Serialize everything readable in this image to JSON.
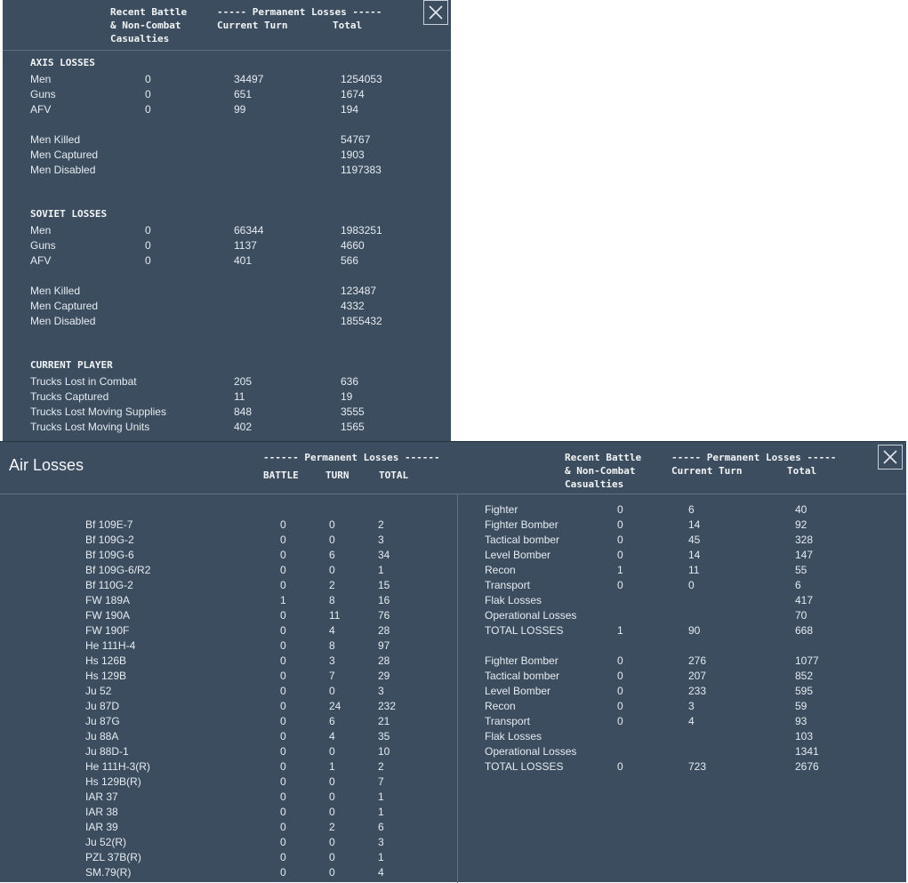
{
  "ground": {
    "col_headers": {
      "recent": [
        "Recent Battle",
        "& Non-Combat",
        "Casualties"
      ],
      "permanent": "----- Permanent Losses -----",
      "current_turn": "Current Turn",
      "total": "Total"
    },
    "sections": [
      {
        "title": "AXIS LOSSES",
        "rows": [
          [
            "Men",
            "0",
            "34497",
            "1254053"
          ],
          [
            "Guns",
            "0",
            "651",
            "1674"
          ],
          [
            "AFV",
            "0",
            "99",
            "194"
          ]
        ],
        "detail": [
          [
            "Men Killed",
            "54767"
          ],
          [
            "Men Captured",
            "1903"
          ],
          [
            "Men Disabled",
            "1197383"
          ]
        ]
      },
      {
        "title": "SOVIET LOSSES",
        "rows": [
          [
            "Men",
            "0",
            "66344",
            "1983251"
          ],
          [
            "Guns",
            "0",
            "1137",
            "4660"
          ],
          [
            "AFV",
            "0",
            "401",
            "566"
          ]
        ],
        "detail": [
          [
            "Men Killed",
            "123487"
          ],
          [
            "Men Captured",
            "4332"
          ],
          [
            "Men Disabled",
            "1855432"
          ]
        ]
      },
      {
        "title": "CURRENT PLAYER",
        "rows": [
          [
            "Trucks Lost in Combat",
            "",
            "205",
            "636"
          ],
          [
            "Trucks Captured",
            "",
            "11",
            "19"
          ],
          [
            "Trucks Lost Moving Supplies",
            "",
            "848",
            "3555"
          ],
          [
            "Trucks Lost Moving Units",
            "",
            "402",
            "1565"
          ]
        ],
        "detail": []
      }
    ]
  },
  "air": {
    "title": "Air Losses",
    "left_headers": {
      "permanent": "------ Permanent Losses ------",
      "battle": "BATTLE",
      "turn": "TURN",
      "total": "TOTAL"
    },
    "right_headers": {
      "recent": [
        "Recent Battle",
        "& Non-Combat",
        "Casualties"
      ],
      "permanent": "----- Permanent Losses -----",
      "current_turn": "Current Turn",
      "total": "Total"
    },
    "aircraft": [
      [
        "Bf 109E-7",
        "0",
        "0",
        "2"
      ],
      [
        "Bf 109G-2",
        "0",
        "0",
        "3"
      ],
      [
        "Bf 109G-6",
        "0",
        "6",
        "34"
      ],
      [
        "Bf 109G-6/R2",
        "0",
        "0",
        "1"
      ],
      [
        "Bf 110G-2",
        "0",
        "2",
        "15"
      ],
      [
        "FW 189A",
        "1",
        "8",
        "16"
      ],
      [
        "FW 190A",
        "0",
        "11",
        "76"
      ],
      [
        "FW 190F",
        "0",
        "4",
        "28"
      ],
      [
        "He 111H-4",
        "0",
        "8",
        "97"
      ],
      [
        "Hs 126B",
        "0",
        "3",
        "28"
      ],
      [
        "Hs 129B",
        "0",
        "7",
        "29"
      ],
      [
        "Ju 52",
        "0",
        "0",
        "3"
      ],
      [
        "Ju 87D",
        "0",
        "24",
        "232"
      ],
      [
        "Ju 87G",
        "0",
        "6",
        "21"
      ],
      [
        "Ju 88A",
        "0",
        "4",
        "35"
      ],
      [
        "Ju 88D-1",
        "0",
        "0",
        "10"
      ],
      [
        "He 111H-3(R)",
        "0",
        "1",
        "2"
      ],
      [
        "Hs 129B(R)",
        "0",
        "0",
        "7"
      ],
      [
        "IAR 37",
        "0",
        "0",
        "1"
      ],
      [
        "IAR 38",
        "0",
        "0",
        "1"
      ],
      [
        "IAR 39",
        "0",
        "2",
        "6"
      ],
      [
        "Ju 52(R)",
        "0",
        "0",
        "3"
      ],
      [
        "PZL 37B(R)",
        "0",
        "0",
        "1"
      ],
      [
        "SM.79(R)",
        "0",
        "0",
        "4"
      ]
    ],
    "summary_blocks": [
      [
        [
          "Fighter",
          "0",
          "6",
          "40"
        ],
        [
          "Fighter Bomber",
          "0",
          "14",
          "92"
        ],
        [
          "Tactical bomber",
          "0",
          "45",
          "328"
        ],
        [
          "Level Bomber",
          "0",
          "14",
          "147"
        ],
        [
          "Recon",
          "1",
          "11",
          "55"
        ],
        [
          "Transport",
          "0",
          "0",
          "6"
        ],
        [
          "Flak Losses",
          "",
          "",
          "417"
        ],
        [
          "Operational Losses",
          "",
          "",
          "70"
        ],
        [
          "TOTAL LOSSES",
          "1",
          "90",
          "668"
        ]
      ],
      [
        [
          "Fighter Bomber",
          "0",
          "276",
          "1077"
        ],
        [
          "Tactical bomber",
          "0",
          "207",
          "852"
        ],
        [
          "Level Bomber",
          "0",
          "233",
          "595"
        ],
        [
          "Recon",
          "0",
          "3",
          "59"
        ],
        [
          "Transport",
          "0",
          "4",
          "93"
        ],
        [
          "Flak Losses",
          "",
          "",
          "103"
        ],
        [
          "Operational Losses",
          "",
          "",
          "1341"
        ],
        [
          "TOTAL LOSSES",
          "0",
          "723",
          "2676"
        ]
      ]
    ]
  },
  "icons": {
    "close": "close-icon"
  }
}
